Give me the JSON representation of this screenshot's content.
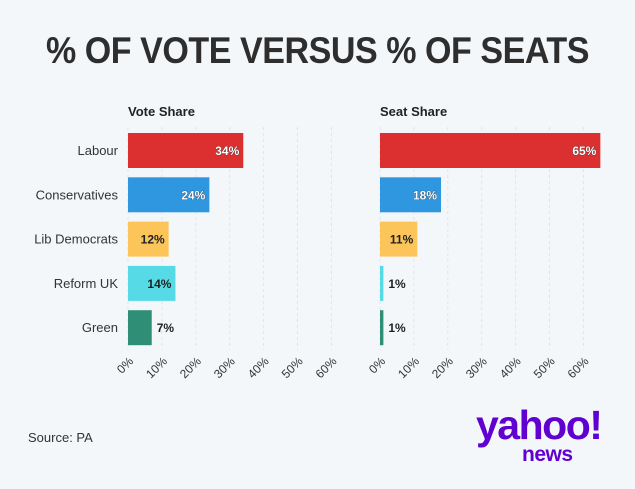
{
  "title": "% OF VOTE VERSUS % OF SEATS",
  "source": "Source: PA",
  "logo": {
    "main": "yahoo!",
    "sub": "news"
  },
  "chart_data": {
    "type": "bar",
    "orientation": "horizontal",
    "categories": [
      "Labour",
      "Conservatives",
      "Lib Democrats",
      "Reform UK",
      "Green"
    ],
    "colors": [
      "#dc2f2f",
      "#2f96e0",
      "#fbc55a",
      "#56dbe6",
      "#2e8f76"
    ],
    "panels": [
      {
        "title": "Vote Share",
        "values": [
          34,
          24,
          12,
          14,
          7
        ],
        "labels": [
          "34%",
          "24%",
          "12%",
          "14%",
          "7%"
        ]
      },
      {
        "title": "Seat Share",
        "values": [
          65,
          18,
          11,
          1,
          1
        ],
        "labels": [
          "65%",
          "18%",
          "11%",
          "1%",
          "1%"
        ]
      }
    ],
    "xticks": [
      "0%",
      "10%",
      "20%",
      "30%",
      "40%",
      "50%",
      "60%"
    ],
    "xtick_values": [
      0,
      10,
      20,
      30,
      40,
      50,
      60
    ],
    "xlim": [
      0,
      65
    ],
    "grid": true
  }
}
